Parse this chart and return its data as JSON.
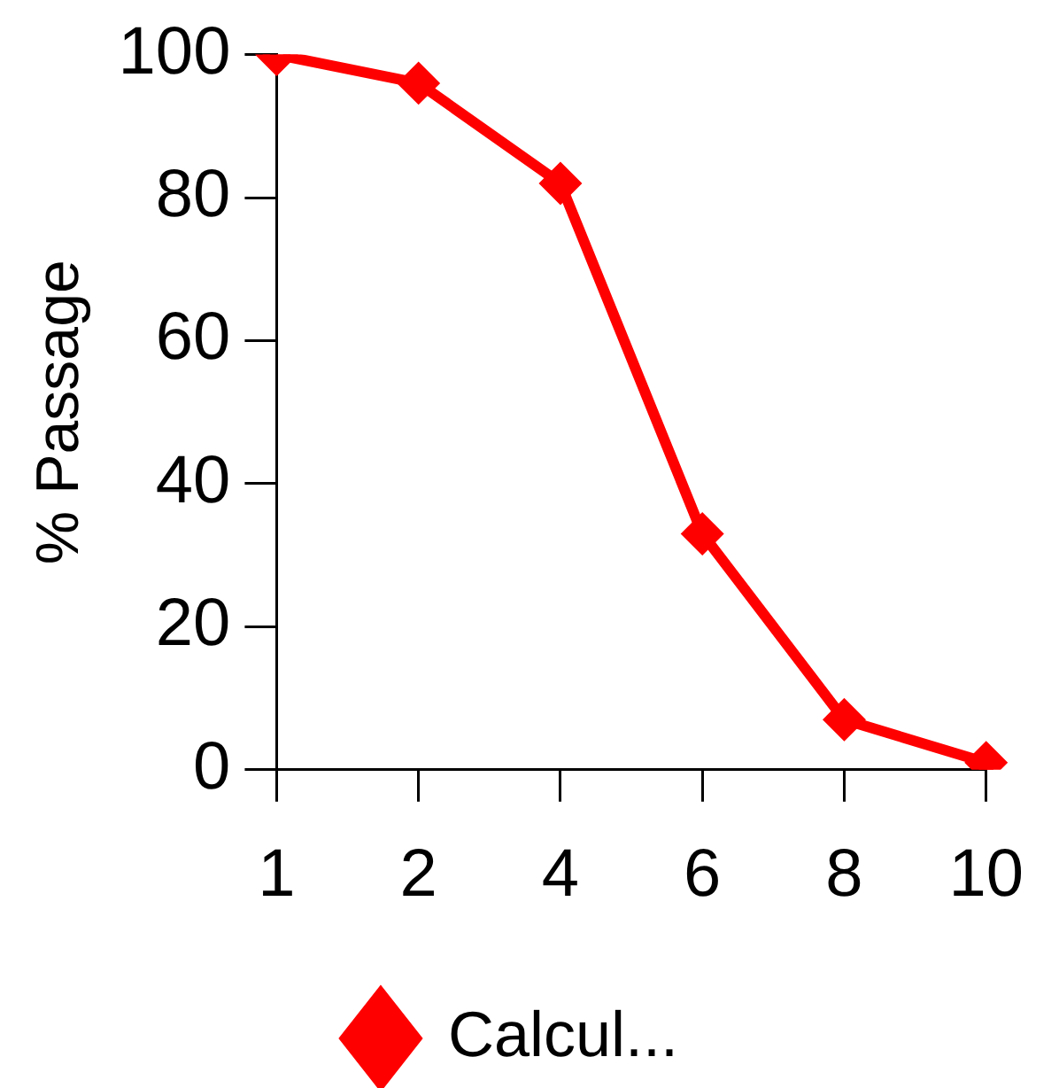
{
  "chart_data": {
    "type": "line",
    "ylabel": "% Passage",
    "categories": [
      "1",
      "2",
      "4",
      "6",
      "8",
      "10"
    ],
    "series": [
      {
        "name": "Calcul...",
        "color": "#ff0000",
        "values": [
          100,
          96,
          82,
          33,
          7,
          1
        ]
      }
    ],
    "ylim": [
      0,
      100
    ],
    "yticks": [
      0,
      20,
      40,
      60,
      80,
      100
    ],
    "grid": false,
    "legend": "bottom",
    "marker": "diamond",
    "line_style": "solid"
  }
}
